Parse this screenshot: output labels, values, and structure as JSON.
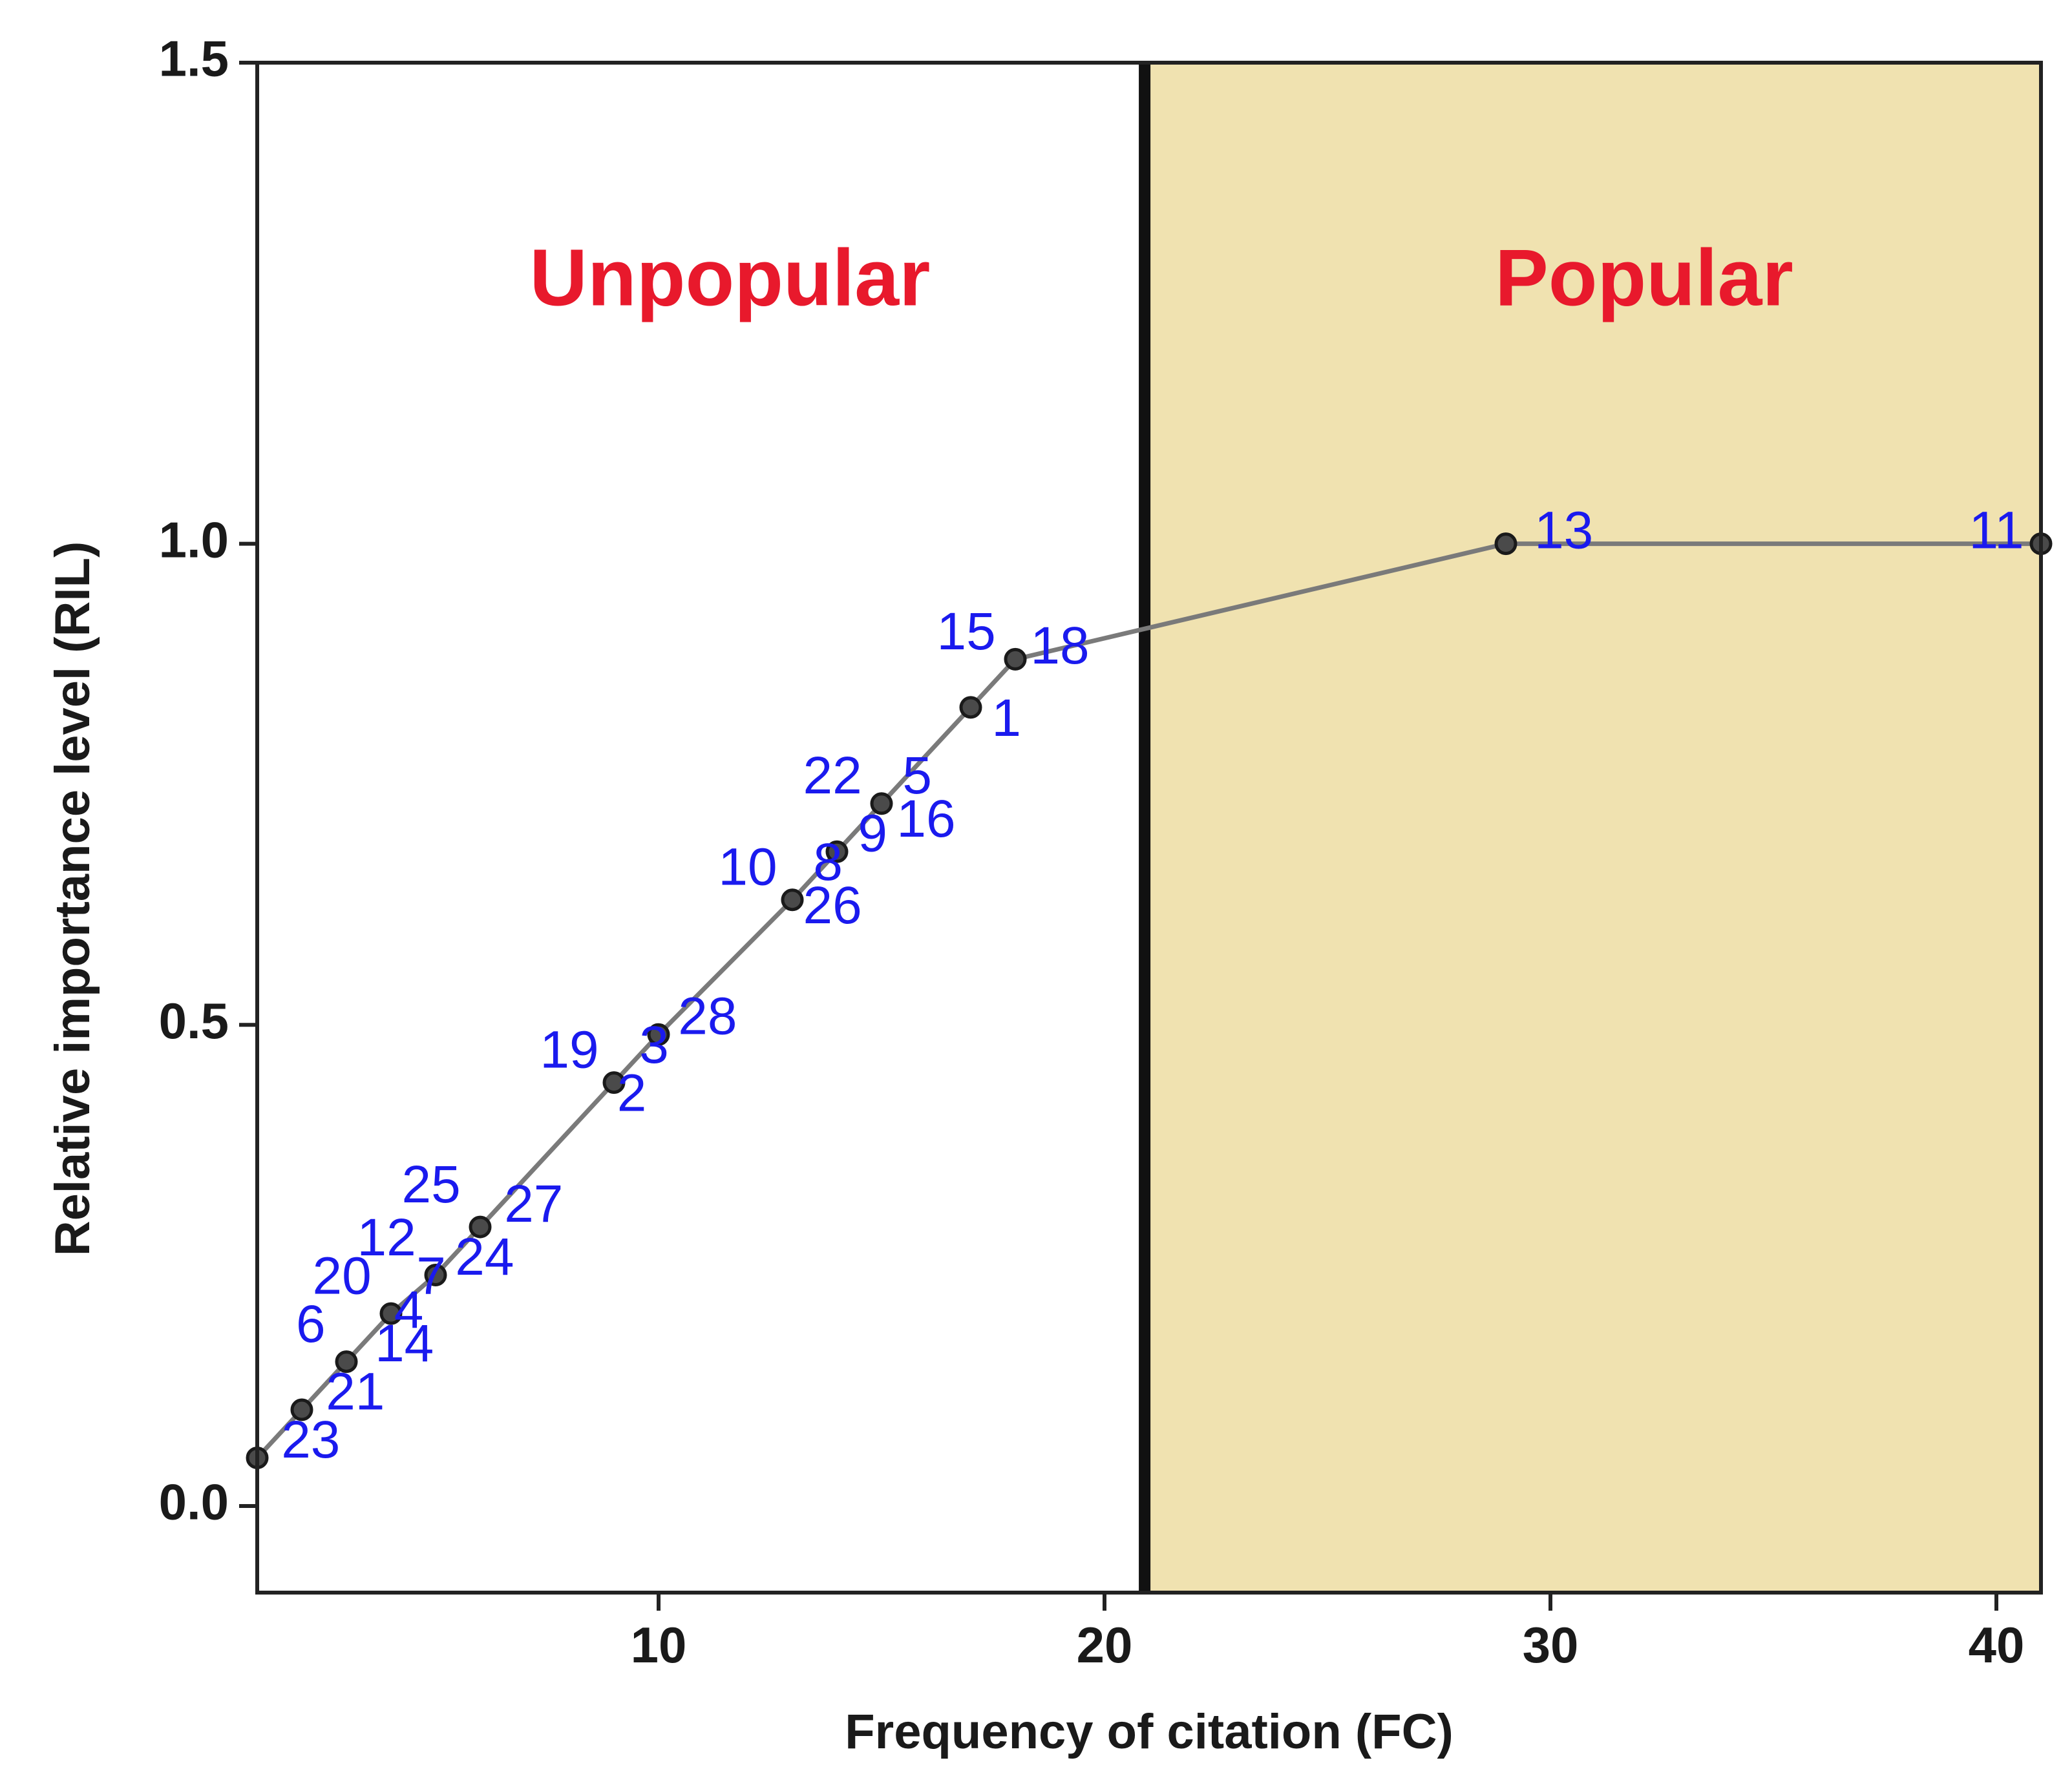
{
  "chart_data": {
    "type": "line",
    "title": "",
    "xlabel": "Frequency of citation (FC)",
    "ylabel": "Relative importance level (RIL)",
    "xlim": [
      1,
      41
    ],
    "ylim": [
      -0.09,
      1.5
    ],
    "x_ticks": [
      10,
      20,
      30,
      40
    ],
    "x_tick_labels": [
      "10",
      "20",
      "30",
      "40"
    ],
    "y_ticks": [
      0.0,
      0.5,
      1.0,
      1.5
    ],
    "y_tick_labels": [
      "0.0",
      "0.5",
      "1.0",
      "1.5"
    ],
    "grid": false,
    "threshold": {
      "x": 20.9
    },
    "regions": [
      {
        "label": "Unpopular",
        "x_from": 1,
        "x_to": 20.9,
        "fill": "#ffffff",
        "label_x": 11.6,
        "label_y": 1.27
      },
      {
        "label": "Popular",
        "x_from": 20.9,
        "x_to": 41,
        "fill": "#f0e2b0",
        "label_x": 32.1,
        "label_y": 1.27
      }
    ],
    "series": [
      {
        "points": [
          {
            "x": 1,
            "y": 0.05
          },
          {
            "x": 2,
            "y": 0.1
          },
          {
            "x": 3,
            "y": 0.15
          },
          {
            "x": 4,
            "y": 0.2
          },
          {
            "x": 5,
            "y": 0.24
          },
          {
            "x": 6,
            "y": 0.29
          },
          {
            "x": 9,
            "y": 0.44
          },
          {
            "x": 10,
            "y": 0.49
          },
          {
            "x": 13,
            "y": 0.63
          },
          {
            "x": 14,
            "y": 0.68
          },
          {
            "x": 15,
            "y": 0.73
          },
          {
            "x": 17,
            "y": 0.83
          },
          {
            "x": 18,
            "y": 0.88
          },
          {
            "x": 29,
            "y": 1.0
          },
          {
            "x": 41,
            "y": 1.0
          }
        ],
        "labels": [
          {
            "text": "23",
            "x": 2.2,
            "y": 0.065
          },
          {
            "text": "21",
            "x": 3.2,
            "y": 0.115
          },
          {
            "text": "6",
            "x": 2.2,
            "y": 0.185
          },
          {
            "text": "14",
            "x": 4.3,
            "y": 0.165
          },
          {
            "text": "20",
            "x": 2.9,
            "y": 0.235
          },
          {
            "text": "4",
            "x": 4.4,
            "y": 0.2
          },
          {
            "text": "7",
            "x": 4.9,
            "y": 0.235
          },
          {
            "text": "12",
            "x": 3.9,
            "y": 0.275
          },
          {
            "text": "24",
            "x": 6.1,
            "y": 0.255
          },
          {
            "text": "25",
            "x": 4.9,
            "y": 0.33
          },
          {
            "text": "27",
            "x": 7.2,
            "y": 0.31
          },
          {
            "text": "19",
            "x": 8.0,
            "y": 0.47
          },
          {
            "text": "2",
            "x": 9.4,
            "y": 0.425
          },
          {
            "text": "3",
            "x": 9.9,
            "y": 0.475
          },
          {
            "text": "28",
            "x": 11.1,
            "y": 0.505
          },
          {
            "text": "10",
            "x": 12.0,
            "y": 0.66
          },
          {
            "text": "8",
            "x": 13.8,
            "y": 0.665
          },
          {
            "text": "26",
            "x": 13.9,
            "y": 0.62
          },
          {
            "text": "9",
            "x": 14.8,
            "y": 0.695
          },
          {
            "text": "22",
            "x": 13.9,
            "y": 0.755
          },
          {
            "text": "5",
            "x": 15.8,
            "y": 0.755
          },
          {
            "text": "16",
            "x": 16.0,
            "y": 0.71
          },
          {
            "text": "1",
            "x": 17.8,
            "y": 0.815
          },
          {
            "text": "15",
            "x": 16.9,
            "y": 0.905
          },
          {
            "text": "18",
            "x": 19.0,
            "y": 0.89
          },
          {
            "text": "13",
            "x": 30.3,
            "y": 1.01
          },
          {
            "text": "11",
            "x": 40.0,
            "y": 1.01
          }
        ]
      }
    ],
    "colors": {
      "line": "#7a7a7a",
      "marker_fill": "#4a4a4a",
      "marker_stroke": "#1a1a1a",
      "point_label": "#1a1aee",
      "region_label": "#e8192c",
      "popular_fill": "#f0e2b0",
      "threshold_line": "#111111",
      "frame": "#222222"
    }
  }
}
